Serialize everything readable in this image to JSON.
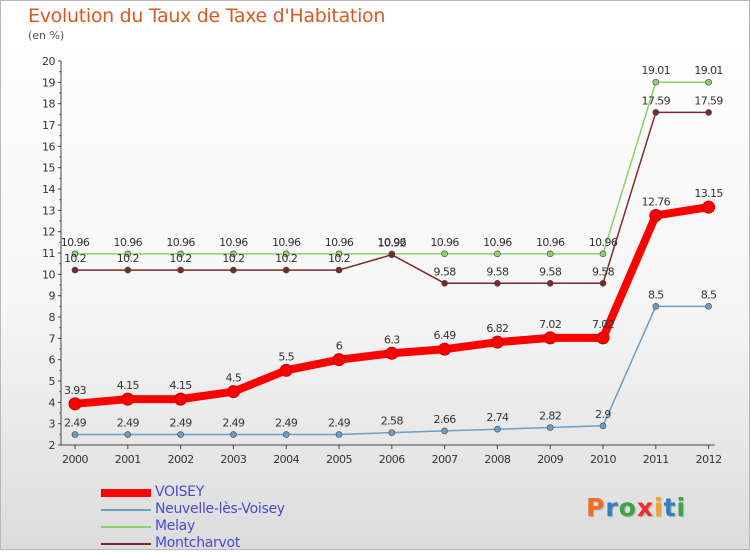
{
  "header": {
    "title": "Evolution du Taux de Taxe d'Habitation",
    "subtitle": "(en %)"
  },
  "logo": {
    "letters": [
      "P",
      "r",
      "o",
      "x",
      "i",
      "t",
      "i"
    ],
    "colors": [
      "#e8722a",
      "#2f7fc1",
      "#3aa547",
      "#e6312f",
      "#f2a520",
      "#2f7fc1",
      "#3aa547"
    ]
  },
  "chart_data": {
    "type": "line",
    "title": "Evolution du Taux de Taxe d'Habitation",
    "subtitle": "(en %)",
    "x": [
      "2000",
      "2001",
      "2002",
      "2003",
      "2004",
      "2005",
      "2006",
      "2007",
      "2008",
      "2009",
      "2010",
      "2011",
      "2012"
    ],
    "ylim": [
      2,
      20
    ],
    "yticks": [
      "2",
      "3",
      "4",
      "5",
      "6",
      "7",
      "8",
      "9",
      "10",
      "11",
      "12",
      "13",
      "14",
      "15",
      "16",
      "17",
      "18",
      "19",
      "20"
    ],
    "grid": false,
    "legend_position": "bottom-left",
    "series": [
      {
        "name": "VOISEY",
        "color": "#ff0000",
        "values": [
          3.93,
          4.15,
          4.15,
          4.5,
          5.5,
          6,
          6.3,
          6.49,
          6.82,
          7.02,
          7.02,
          12.76,
          13.15
        ],
        "labels": [
          "3.93",
          "4.15",
          "4.15",
          "4.5",
          "5.5",
          "6",
          "6.3",
          "6.49",
          "6.82",
          "7.02",
          "7.02",
          "12.76",
          "13.15"
        ]
      },
      {
        "name": "Neuvelle-lès-Voisey",
        "color": "#6a9ec8",
        "values": [
          2.49,
          2.49,
          2.49,
          2.49,
          2.49,
          2.49,
          2.58,
          2.66,
          2.74,
          2.82,
          2.9,
          8.5,
          8.5
        ],
        "labels": [
          "2.49",
          "2.49",
          "2.49",
          "2.49",
          "2.49",
          "2.49",
          "2.58",
          "2.66",
          "2.74",
          "2.82",
          "2.9",
          "8.5",
          "8.5"
        ]
      },
      {
        "name": "Melay",
        "color": "#8fd16a",
        "values": [
          10.96,
          10.96,
          10.96,
          10.96,
          10.96,
          10.96,
          10.96,
          10.96,
          10.96,
          10.96,
          10.96,
          19.01,
          19.01
        ],
        "labels": [
          "10.96",
          "10.96",
          "10.96",
          "10.96",
          "10.96",
          "10.96",
          "10.96",
          "10.96",
          "10.96",
          "10.96",
          "10.96",
          "19.01",
          "19.01"
        ]
      },
      {
        "name": "Montcharvot",
        "color": "#7a2a2a",
        "values": [
          10.2,
          10.2,
          10.2,
          10.2,
          10.2,
          10.2,
          10.92,
          9.58,
          9.58,
          9.58,
          9.58,
          17.59,
          17.59
        ],
        "labels": [
          "10.2",
          "10.2",
          "10.2",
          "10.2",
          "10.2",
          "10.2",
          "10.92",
          "9.58",
          "9.58",
          "9.58",
          "9.58",
          "17.59",
          "17.59"
        ]
      }
    ]
  }
}
